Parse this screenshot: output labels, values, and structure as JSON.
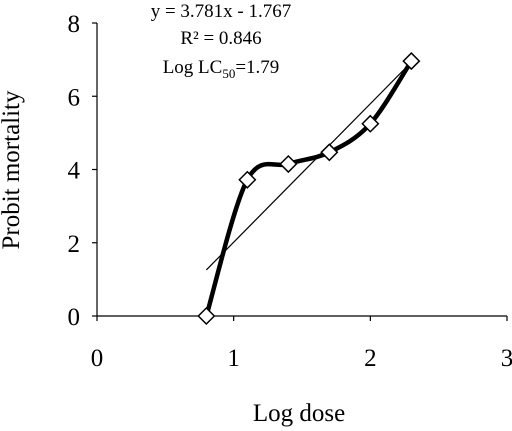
{
  "chart_data": {
    "type": "scatter",
    "title": "",
    "xlabel": "Log dose",
    "ylabel": "Probit mortality",
    "xlim": [
      0,
      3
    ],
    "ylim": [
      0,
      8
    ],
    "x_ticks": [
      0,
      1,
      2,
      3
    ],
    "y_ticks": [
      0,
      2,
      4,
      6,
      8
    ],
    "grid": false,
    "legend": "none",
    "series": [
      {
        "marker": "diamond-open",
        "line": "smoothed",
        "x": [
          0.8,
          1.1,
          1.4,
          1.7,
          2.0,
          2.3
        ],
        "y": [
          0.0,
          3.72,
          4.15,
          4.47,
          5.25,
          6.96
        ]
      }
    ],
    "trendline": {
      "type": "linear",
      "slope": 3.781,
      "intercept": -1.767,
      "x_range": [
        0.8,
        2.3
      ]
    },
    "annotations": {
      "equation": "y = 3.781x - 1.767",
      "r_squared": "R² = 0.846",
      "lc_prefix": "Log LC",
      "lc_subscript": "50",
      "lc_value": "=1.79"
    }
  }
}
